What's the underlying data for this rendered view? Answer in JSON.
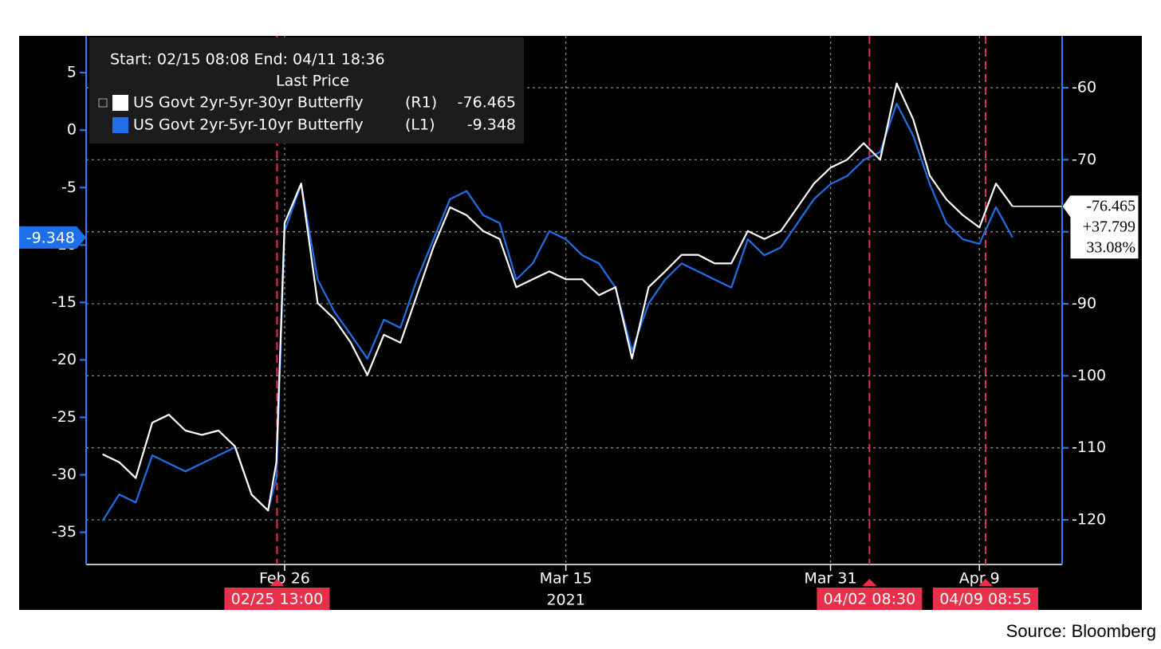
{
  "chart_data": {
    "type": "line",
    "legend_header": "Start: 02/15 08:08 End: 04/11 18:36",
    "legend_title": "Last Price",
    "x_year_label": "2021",
    "x": [
      "2021-02-15",
      "2021-02-16",
      "2021-02-17",
      "2021-02-18",
      "2021-02-19",
      "2021-02-20",
      "2021-02-21",
      "2021-02-22",
      "2021-02-23",
      "2021-02-24",
      "2021-02-25",
      "2021-02-25T12:00",
      "2021-02-26",
      "2021-02-27",
      "2021-02-28",
      "2021-03-01",
      "2021-03-02",
      "2021-03-03",
      "2021-03-04",
      "2021-03-05",
      "2021-03-06",
      "2021-03-07",
      "2021-03-08",
      "2021-03-09",
      "2021-03-10",
      "2021-03-11",
      "2021-03-12",
      "2021-03-13",
      "2021-03-14",
      "2021-03-15",
      "2021-03-16",
      "2021-03-17",
      "2021-03-18",
      "2021-03-19",
      "2021-03-20",
      "2021-03-21",
      "2021-03-22",
      "2021-03-23",
      "2021-03-24",
      "2021-03-25",
      "2021-03-26",
      "2021-03-27",
      "2021-03-28",
      "2021-03-29",
      "2021-03-30",
      "2021-03-31",
      "2021-04-01",
      "2021-04-02",
      "2021-04-03",
      "2021-04-04",
      "2021-04-05",
      "2021-04-06",
      "2021-04-07",
      "2021-04-08",
      "2021-04-09",
      "2021-04-10",
      "2021-04-11"
    ],
    "series": [
      {
        "name": "US Govt 2yr-5yr-30yr Butterfly",
        "axis_tag": "(R1)",
        "axis": "y2",
        "color": "#ffffff",
        "last_value": -76.465,
        "change": {
          "value": 37.799,
          "label": "+37.799"
        },
        "change_pct": {
          "value": 33.08,
          "label": "33.08%"
        },
        "values": [
          -110.9,
          -112,
          -114.2,
          -106.5,
          -105.4,
          -107.6,
          -108.2,
          -107.6,
          -109.8,
          -116.5,
          -118.7,
          -112,
          -78.8,
          -73.3,
          -89.9,
          -92.1,
          -95.4,
          -99.9,
          -94.3,
          -95.4,
          -88.8,
          -82.1,
          -76.6,
          -77.7,
          -79.9,
          -81,
          -87.7,
          -86.6,
          -85.5,
          -86.6,
          -86.6,
          -88.8,
          -87.7,
          -97.6,
          -87.7,
          -85.5,
          -83.2,
          -83.2,
          -84.4,
          -84.4,
          -79.9,
          -81,
          -79.9,
          -76.6,
          -73.3,
          -71.1,
          -70,
          -67.7,
          -70,
          -59.4,
          -64.4,
          -72.2,
          -75.5,
          -77.7,
          -79.4,
          -73.3,
          -76.465
        ]
      },
      {
        "name": "US Govt 2yr-5yr-10yr Butterfly",
        "axis_tag": "(L1)",
        "color": "#1f6fe8",
        "last_value": -9.348,
        "values": [
          -34,
          -31.7,
          -32.4,
          -28.3,
          -29,
          -29.7,
          -29,
          -28.3,
          -27.6,
          -31.7,
          -33.1,
          -30.3,
          -8.8,
          -4.7,
          -13,
          -15.8,
          -17.8,
          -19.9,
          -16.5,
          -17.2,
          -13,
          -9.5,
          -6,
          -5.3,
          -7.4,
          -8.1,
          -13,
          -11.6,
          -8.8,
          -9.5,
          -10.9,
          -11.6,
          -13.7,
          -19.2,
          -15.1,
          -13,
          -11.6,
          -12.3,
          -13,
          -13.7,
          -9.5,
          -10.9,
          -10.2,
          -8.1,
          -6,
          -4.7,
          -4,
          -2.6,
          -1.9,
          2.3,
          -0.5,
          -4.7,
          -8.1,
          -9.5,
          -9.9,
          -6.7,
          -9.348
        ]
      }
    ],
    "xlim": [
      "2021-02-14",
      "2021-04-14"
    ],
    "xticks": [
      {
        "value": "2021-02-26",
        "label": "Feb 26"
      },
      {
        "value": "2021-03-15",
        "label": "Mar 15"
      },
      {
        "value": "2021-03-31",
        "label": "Mar 31"
      },
      {
        "value": "2021-04-09",
        "label": "Apr 9"
      }
    ],
    "ylim": [
      -37.8,
      8.2
    ],
    "yticks": [
      5,
      0,
      -5,
      -10,
      -15,
      -20,
      -25,
      -30,
      -35
    ],
    "y2lim": [
      -126.2,
      -52.8
    ],
    "y2ticks": [
      -60,
      -70,
      -80,
      -90,
      -100,
      -110,
      -120
    ],
    "grid": true,
    "axis_color": "#2a7fff",
    "events": [
      {
        "x": "2021-02-25T13:00",
        "label": "02/25 13:00"
      },
      {
        "x": "2021-04-02T08:30",
        "label": "04/02 08:30"
      },
      {
        "x": "2021-04-09T08:55",
        "label": "04/09 08:55"
      }
    ],
    "event_color": "#e8304a"
  },
  "source": "Source: Bloomberg"
}
